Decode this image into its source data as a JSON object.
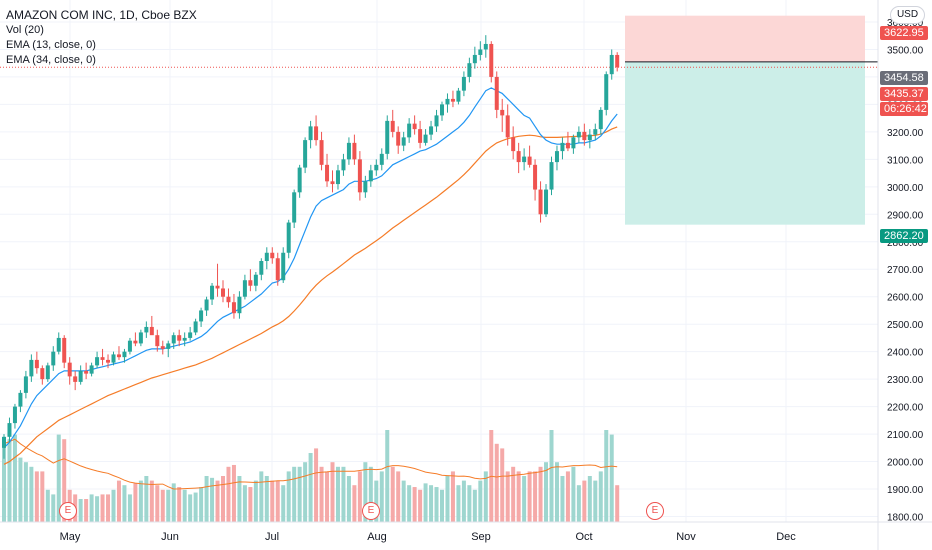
{
  "legend": {
    "title": "AMAZON COM INC, 1D, Cboe BZX",
    "indicators": [
      "Vol (20)",
      "EMA (13, close, 0)",
      "EMA (34, close, 0)"
    ]
  },
  "currency_button": "USD",
  "price_axis": {
    "ticks": [
      "1800.00",
      "1900.00",
      "2000.00",
      "2100.00",
      "2200.00",
      "2300.00",
      "2400.00",
      "2500.00",
      "2600.00",
      "2700.00",
      "2800.00",
      "2900.00",
      "3000.00",
      "3100.00",
      "3200.00",
      "3300.00",
      "3400.00",
      "3500.00",
      "3600.00"
    ],
    "min": 1780,
    "max": 3680
  },
  "price_tags": {
    "stop_loss": "3622.95",
    "last_price": "3454.58",
    "current": "3435.37",
    "countdown": "06:26:42",
    "take_profit": "2862.20"
  },
  "time_axis": {
    "labels": [
      "May",
      "Jun",
      "Jul",
      "Aug",
      "Sep",
      "Oct",
      "Nov",
      "Dec"
    ]
  },
  "earnings_markers": [
    "E",
    "E",
    "E"
  ],
  "colors": {
    "up": "#26a69a",
    "down": "#ef5350",
    "vol_up": "#9ed6cf",
    "vol_down": "#f5a9a8",
    "ema13": "#2196f3",
    "ema34": "#f57c28",
    "vol_ma": "#f57c28",
    "stop_zone": "#fcd7d6",
    "target_zone": "#cceee8",
    "last_price_bg": "#6a6d78",
    "take_profit_bg": "#089981"
  },
  "chart_data": {
    "type": "candlestick",
    "title": "AMAZON COM INC, 1D, Cboe BZX",
    "y_range": [
      1780,
      3680
    ],
    "approximate": true,
    "candles": [
      [
        2050,
        2100,
        2010,
        2090
      ],
      [
        2090,
        2160,
        2070,
        2140
      ],
      [
        2140,
        2210,
        2120,
        2200
      ],
      [
        2200,
        2260,
        2180,
        2250
      ],
      [
        2250,
        2330,
        2230,
        2310
      ],
      [
        2310,
        2390,
        2290,
        2370
      ],
      [
        2370,
        2400,
        2320,
        2340
      ],
      [
        2340,
        2350,
        2280,
        2300
      ],
      [
        2300,
        2360,
        2290,
        2350
      ],
      [
        2350,
        2420,
        2330,
        2400
      ],
      [
        2400,
        2470,
        2390,
        2450
      ],
      [
        2450,
        2460,
        2340,
        2360
      ],
      [
        2360,
        2380,
        2280,
        2310
      ],
      [
        2310,
        2330,
        2260,
        2290
      ],
      [
        2290,
        2350,
        2280,
        2330
      ],
      [
        2330,
        2360,
        2300,
        2320
      ],
      [
        2320,
        2360,
        2310,
        2350
      ],
      [
        2350,
        2400,
        2340,
        2380
      ],
      [
        2380,
        2410,
        2350,
        2370
      ],
      [
        2370,
        2390,
        2340,
        2360
      ],
      [
        2360,
        2400,
        2350,
        2390
      ],
      [
        2390,
        2420,
        2370,
        2380
      ],
      [
        2380,
        2410,
        2360,
        2400
      ],
      [
        2400,
        2450,
        2390,
        2440
      ],
      [
        2440,
        2470,
        2420,
        2430
      ],
      [
        2430,
        2480,
        2420,
        2470
      ],
      [
        2470,
        2510,
        2450,
        2490
      ],
      [
        2490,
        2530,
        2470,
        2460
      ],
      [
        2460,
        2480,
        2400,
        2420
      ],
      [
        2420,
        2440,
        2390,
        2410
      ],
      [
        2410,
        2440,
        2380,
        2430
      ],
      [
        2430,
        2470,
        2410,
        2460
      ],
      [
        2460,
        2480,
        2420,
        2440
      ],
      [
        2440,
        2470,
        2420,
        2450
      ],
      [
        2450,
        2490,
        2440,
        2470
      ],
      [
        2470,
        2520,
        2460,
        2510
      ],
      [
        2510,
        2560,
        2490,
        2550
      ],
      [
        2550,
        2600,
        2530,
        2590
      ],
      [
        2590,
        2650,
        2570,
        2640
      ],
      [
        2640,
        2720,
        2600,
        2630
      ],
      [
        2630,
        2660,
        2580,
        2600
      ],
      [
        2600,
        2630,
        2560,
        2580
      ],
      [
        2580,
        2610,
        2520,
        2540
      ],
      [
        2540,
        2620,
        2520,
        2600
      ],
      [
        2600,
        2680,
        2590,
        2660
      ],
      [
        2660,
        2700,
        2620,
        2640
      ],
      [
        2640,
        2690,
        2620,
        2680
      ],
      [
        2680,
        2740,
        2660,
        2730
      ],
      [
        2730,
        2780,
        2700,
        2760
      ],
      [
        2760,
        2780,
        2720,
        2740
      ],
      [
        2740,
        2760,
        2640,
        2660
      ],
      [
        2660,
        2780,
        2650,
        2760
      ],
      [
        2760,
        2880,
        2740,
        2870
      ],
      [
        2870,
        2990,
        2850,
        2980
      ],
      [
        2980,
        3080,
        2960,
        3070
      ],
      [
        3070,
        3180,
        3050,
        3170
      ],
      [
        3170,
        3240,
        3140,
        3220
      ],
      [
        3220,
        3260,
        3150,
        3170
      ],
      [
        3170,
        3200,
        3060,
        3080
      ],
      [
        3080,
        3120,
        3000,
        3020
      ],
      [
        3020,
        3060,
        2980,
        3010
      ],
      [
        3010,
        3080,
        2990,
        3060
      ],
      [
        3060,
        3120,
        3040,
        3100
      ],
      [
        3100,
        3180,
        3080,
        3160
      ],
      [
        3160,
        3190,
        3080,
        3100
      ],
      [
        3100,
        3130,
        2950,
        2980
      ],
      [
        2980,
        3040,
        2960,
        3020
      ],
      [
        3020,
        3080,
        3000,
        3060
      ],
      [
        3060,
        3100,
        3040,
        3080
      ],
      [
        3080,
        3140,
        3060,
        3120
      ],
      [
        3120,
        3260,
        3100,
        3240
      ],
      [
        3240,
        3280,
        3180,
        3200
      ],
      [
        3200,
        3220,
        3120,
        3150
      ],
      [
        3150,
        3200,
        3130,
        3180
      ],
      [
        3180,
        3250,
        3160,
        3230
      ],
      [
        3230,
        3260,
        3190,
        3210
      ],
      [
        3210,
        3240,
        3140,
        3160
      ],
      [
        3160,
        3210,
        3150,
        3190
      ],
      [
        3190,
        3240,
        3170,
        3220
      ],
      [
        3220,
        3280,
        3200,
        3260
      ],
      [
        3260,
        3310,
        3240,
        3300
      ],
      [
        3300,
        3340,
        3270,
        3320
      ],
      [
        3320,
        3350,
        3290,
        3310
      ],
      [
        3310,
        3360,
        3300,
        3350
      ],
      [
        3350,
        3420,
        3330,
        3400
      ],
      [
        3400,
        3470,
        3380,
        3450
      ],
      [
        3450,
        3510,
        3430,
        3480
      ],
      [
        3480,
        3530,
        3460,
        3500
      ],
      [
        3500,
        3552,
        3470,
        3520
      ],
      [
        3520,
        3530,
        3380,
        3400
      ],
      [
        3400,
        3420,
        3250,
        3280
      ],
      [
        3280,
        3320,
        3200,
        3260
      ],
      [
        3260,
        3300,
        3150,
        3180
      ],
      [
        3180,
        3220,
        3100,
        3130
      ],
      [
        3130,
        3160,
        3050,
        3090
      ],
      [
        3090,
        3140,
        3060,
        3110
      ],
      [
        3110,
        3150,
        3070,
        3080
      ],
      [
        3080,
        3100,
        2950,
        2990
      ],
      [
        2990,
        3020,
        2870,
        2900
      ],
      [
        2900,
        3010,
        2890,
        2990
      ],
      [
        2990,
        3110,
        2970,
        3090
      ],
      [
        3090,
        3150,
        3060,
        3130
      ],
      [
        3130,
        3180,
        3100,
        3160
      ],
      [
        3160,
        3200,
        3130,
        3140
      ],
      [
        3140,
        3190,
        3120,
        3180
      ],
      [
        3180,
        3220,
        3160,
        3200
      ],
      [
        3200,
        3230,
        3150,
        3170
      ],
      [
        3170,
        3210,
        3140,
        3190
      ],
      [
        3190,
        3230,
        3170,
        3210
      ],
      [
        3210,
        3290,
        3190,
        3280
      ],
      [
        3280,
        3420,
        3260,
        3410
      ],
      [
        3410,
        3500,
        3390,
        3480
      ],
      [
        3480,
        3490,
        3420,
        3435
      ]
    ],
    "ema13": [
      2050,
      2070,
      2100,
      2130,
      2170,
      2210,
      2240,
      2260,
      2280,
      2300,
      2320,
      2330,
      2330,
      2330,
      2330,
      2330,
      2335,
      2340,
      2345,
      2350,
      2355,
      2360,
      2365,
      2375,
      2385,
      2395,
      2405,
      2410,
      2410,
      2410,
      2415,
      2420,
      2425,
      2430,
      2435,
      2445,
      2455,
      2470,
      2490,
      2510,
      2525,
      2535,
      2545,
      2555,
      2565,
      2580,
      2595,
      2610,
      2630,
      2650,
      2655,
      2670,
      2700,
      2740,
      2790,
      2840,
      2890,
      2930,
      2950,
      2960,
      2970,
      2980,
      2990,
      3010,
      3020,
      3020,
      3020,
      3025,
      3030,
      3040,
      3060,
      3080,
      3090,
      3100,
      3110,
      3120,
      3130,
      3135,
      3145,
      3155,
      3170,
      3185,
      3200,
      3215,
      3235,
      3260,
      3290,
      3320,
      3350,
      3360,
      3350,
      3340,
      3320,
      3300,
      3280,
      3260,
      3250,
      3220,
      3190,
      3170,
      3160,
      3155,
      3155,
      3155,
      3155,
      3160,
      3160,
      3165,
      3170,
      3185,
      3210,
      3240,
      3265
    ],
    "ema34": [
      1990,
      2000,
      2015,
      2030,
      2050,
      2070,
      2090,
      2105,
      2120,
      2135,
      2150,
      2160,
      2170,
      2180,
      2190,
      2200,
      2210,
      2220,
      2230,
      2240,
      2248,
      2256,
      2264,
      2272,
      2280,
      2288,
      2296,
      2304,
      2310,
      2316,
      2322,
      2328,
      2334,
      2340,
      2346,
      2352,
      2360,
      2368,
      2376,
      2386,
      2396,
      2406,
      2416,
      2426,
      2436,
      2446,
      2456,
      2466,
      2478,
      2490,
      2500,
      2512,
      2528,
      2548,
      2570,
      2594,
      2620,
      2642,
      2660,
      2676,
      2690,
      2705,
      2720,
      2736,
      2752,
      2764,
      2776,
      2790,
      2804,
      2818,
      2834,
      2850,
      2864,
      2878,
      2892,
      2906,
      2920,
      2934,
      2948,
      2962,
      2978,
      2994,
      3010,
      3026,
      3044,
      3064,
      3086,
      3108,
      3130,
      3146,
      3160,
      3168,
      3175,
      3180,
      3184,
      3186,
      3188,
      3186,
      3182,
      3180,
      3180,
      3180,
      3181,
      3182,
      3183,
      3184,
      3185,
      3186,
      3187,
      3192,
      3200,
      3210,
      3218
    ],
    "volume": [
      0.85,
      0.9,
      0.95,
      0.7,
      0.65,
      0.6,
      0.55,
      0.55,
      0.35,
      0.3,
      0.95,
      0.9,
      0.35,
      0.3,
      0.25,
      0.25,
      0.3,
      0.28,
      0.3,
      0.3,
      0.35,
      0.45,
      0.4,
      0.3,
      0.42,
      0.45,
      0.5,
      0.45,
      0.4,
      0.35,
      0.35,
      0.42,
      0.38,
      0.35,
      0.3,
      0.32,
      0.38,
      0.5,
      0.48,
      0.45,
      0.5,
      0.6,
      0.62,
      0.5,
      0.4,
      0.38,
      0.45,
      0.55,
      0.5,
      0.45,
      0.45,
      0.4,
      0.55,
      0.6,
      0.6,
      0.65,
      0.75,
      0.8,
      0.6,
      0.55,
      0.65,
      0.6,
      0.6,
      0.5,
      0.4,
      0.55,
      0.65,
      0.6,
      0.45,
      0.55,
      1.0,
      0.6,
      0.55,
      0.45,
      0.4,
      0.38,
      0.35,
      0.42,
      0.4,
      0.38,
      0.35,
      0.5,
      0.55,
      0.4,
      0.45,
      0.4,
      0.35,
      0.45,
      0.55,
      1.0,
      0.85,
      0.8,
      0.55,
      0.6,
      0.55,
      0.5,
      0.55,
      0.55,
      0.6,
      0.65,
      1.0,
      0.65,
      0.5,
      0.55,
      0.6,
      0.4,
      0.45,
      0.5,
      0.45,
      0.55,
      1.0,
      0.95,
      0.4
    ]
  }
}
